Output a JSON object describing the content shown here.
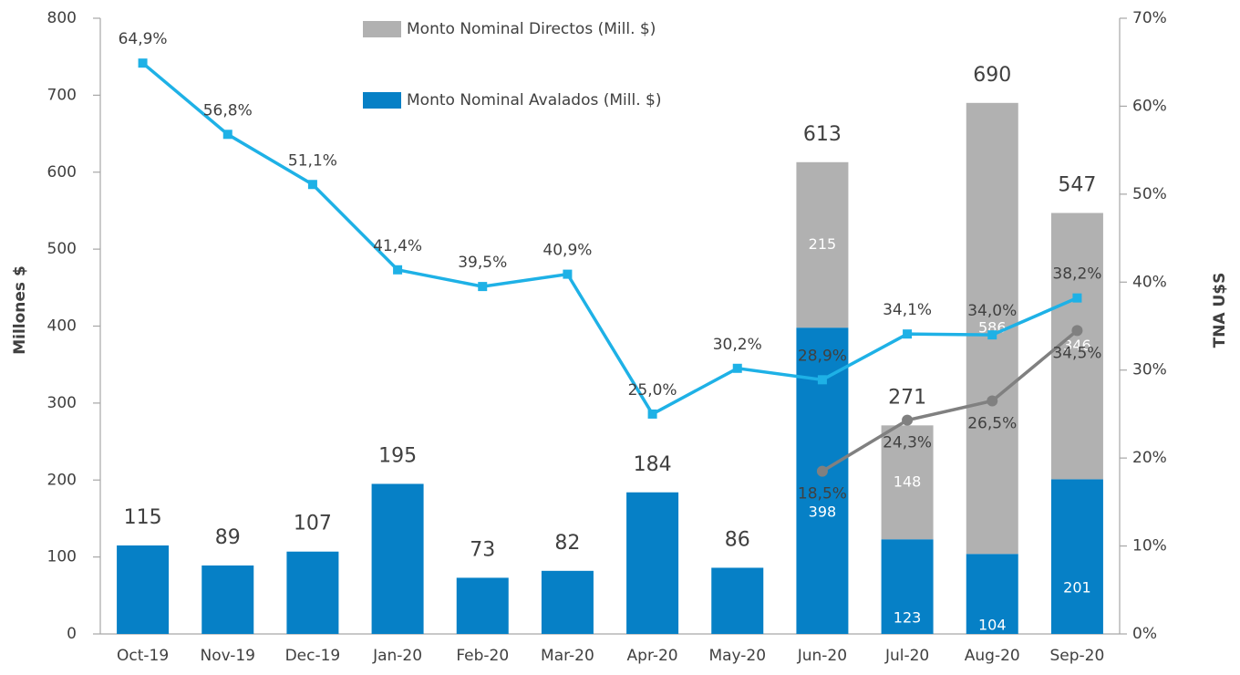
{
  "chart_data": {
    "type": "bar",
    "stacked": true,
    "categories": [
      "Oct-19",
      "Nov-19",
      "Dec-19",
      "Jan-20",
      "Feb-20",
      "Mar-20",
      "Apr-20",
      "May-20",
      "Jun-20",
      "Jul-20",
      "Aug-20",
      "Sep-20"
    ],
    "series": [
      {
        "name": "Monto Nominal Avalados (Mill. $)",
        "color": "#0680c6",
        "values": [
          115,
          89,
          107,
          195,
          73,
          82,
          184,
          86,
          398,
          123,
          104,
          201
        ]
      },
      {
        "name": "Monto Nominal Directos (Mill. $)",
        "color": "#b1b1b1",
        "values": [
          null,
          null,
          null,
          null,
          null,
          null,
          null,
          null,
          215,
          148,
          586,
          346
        ]
      }
    ],
    "total_labels": [
      115,
      89,
      107,
      195,
      73,
      82,
      184,
      86,
      613,
      271,
      690,
      547
    ],
    "lines": [
      {
        "color": "#1eb1e6",
        "axis": "y2",
        "marker": "square",
        "values": [
          64.9,
          56.8,
          51.1,
          41.4,
          39.5,
          40.9,
          25.0,
          30.2,
          28.9,
          34.1,
          34.0,
          38.2
        ],
        "value_labels": [
          "64,9%",
          "56,8%",
          "51,1%",
          "41,4%",
          "39,5%",
          "40,9%",
          "25,0%",
          "30,2%",
          "28,9%",
          "34,1%",
          "34,0%",
          "38,2%"
        ]
      },
      {
        "color": "#808080",
        "axis": "y2",
        "marker": "circle",
        "values": [
          null,
          null,
          null,
          null,
          null,
          null,
          null,
          null,
          18.5,
          24.3,
          26.5,
          34.5
        ],
        "value_labels": [
          null,
          null,
          null,
          null,
          null,
          null,
          null,
          null,
          "18,5%",
          "24,3%",
          "26,5%",
          "34,5%"
        ]
      }
    ],
    "ylabel": "Millones $",
    "y2label": "TNA U$S",
    "ylim": [
      0,
      800
    ],
    "yticks": [
      0,
      100,
      200,
      300,
      400,
      500,
      600,
      700,
      800
    ],
    "y2lim": [
      0,
      70
    ],
    "y2ticks": [
      {
        "value": 0,
        "label": "0%"
      },
      {
        "value": 10,
        "label": "10%"
      },
      {
        "value": 20,
        "label": "20%"
      },
      {
        "value": 30,
        "label": "30%"
      },
      {
        "value": 40,
        "label": "40%"
      },
      {
        "value": 50,
        "label": "50%"
      },
      {
        "value": 60,
        "label": "60%"
      },
      {
        "value": 70,
        "label": "70%"
      }
    ],
    "legend": "top"
  }
}
